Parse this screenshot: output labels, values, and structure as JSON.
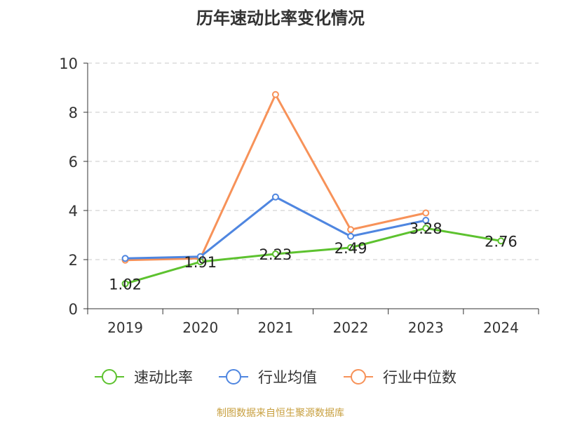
{
  "title": "历年速动比率变化情况",
  "source": "制图数据来自恒生聚源数据库",
  "chart_data": {
    "type": "line",
    "title": "历年速动比率变化情况",
    "categories": [
      "2019",
      "2020",
      "2021",
      "2022",
      "2023",
      "2024"
    ],
    "ylim": [
      0,
      10
    ],
    "yticks": [
      "0",
      "2",
      "4",
      "6",
      "8",
      "10"
    ],
    "grid": true,
    "legend_position": "bottom",
    "series": [
      {
        "name": "速动比率",
        "color": "#5dc22f",
        "values": [
          1.02,
          1.91,
          2.23,
          2.49,
          3.28,
          2.76
        ],
        "labels": [
          "1.02",
          "1.91",
          "2.23",
          "2.49",
          "3.28",
          "2.76"
        ]
      },
      {
        "name": "行业均值",
        "color": "#4f86e0",
        "values": [
          2.05,
          2.12,
          4.55,
          2.95,
          3.6,
          null
        ]
      },
      {
        "name": "行业中位数",
        "color": "#f79259",
        "values": [
          1.98,
          2.05,
          8.72,
          3.22,
          3.9,
          null
        ]
      }
    ]
  }
}
